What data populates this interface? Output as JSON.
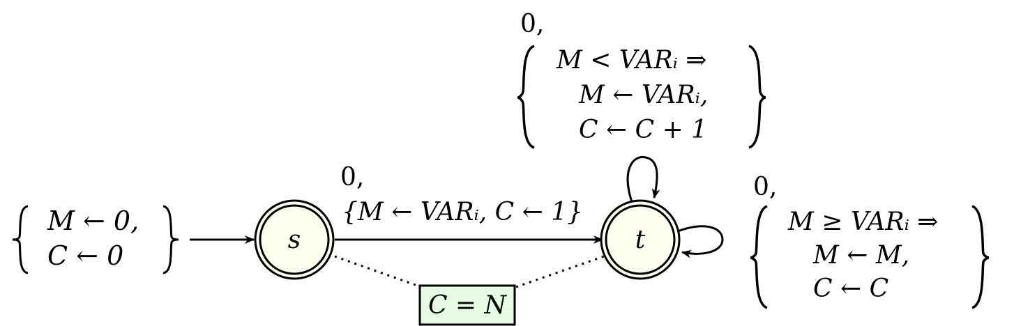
{
  "init": {
    "line1": "M ← 0,",
    "line2": "C  ← 0"
  },
  "states": [
    {
      "label": "s"
    },
    {
      "label": "t"
    }
  ],
  "edge_st": {
    "line1": "0,",
    "line2": "{M ← VARᵢ, C ← 1}"
  },
  "loop_top": {
    "prefix": "0,",
    "line1": "M < VARᵢ ⇒",
    "line2": "M ← VARᵢ,",
    "line3": "C  ← C + 1"
  },
  "loop_right": {
    "prefix": "0,",
    "line1": "M ≥ VARᵢ ⇒",
    "line2": "M ← M,",
    "line3": "C  ← C"
  },
  "constraint": {
    "label": "C = N",
    "fill": "#e6fbe4",
    "border": "#000000"
  },
  "colors": {
    "state_fill": "#fffff0",
    "stroke": "#000000"
  }
}
